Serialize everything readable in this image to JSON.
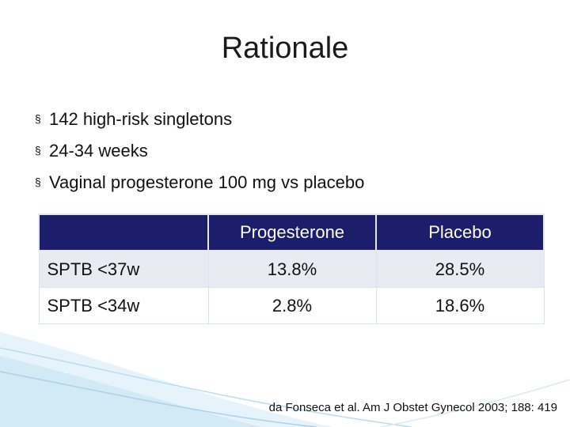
{
  "slide": {
    "title": "Rationale",
    "bullets": [
      "142 high-risk singletons",
      "24-34 weeks",
      "Vaginal progesterone 100 mg vs placebo"
    ],
    "bullet_marker": "§"
  },
  "table": {
    "headers": [
      "",
      "Progesterone",
      "Placebo"
    ],
    "rows": [
      {
        "label": "SPTB <37w",
        "progesterone": "13.8%",
        "placebo": "28.5%"
      },
      {
        "label": "SPTB <34w",
        "progesterone": "2.8%",
        "placebo": "18.6%"
      }
    ],
    "header_color": "#1c1e6b",
    "shade_color": "#e8ebf2"
  },
  "citation": "da Fonseca et al. Am J Obstet Gynecol 2003; 188: 419",
  "decor": {
    "wave_color": "#c9e4f4"
  }
}
